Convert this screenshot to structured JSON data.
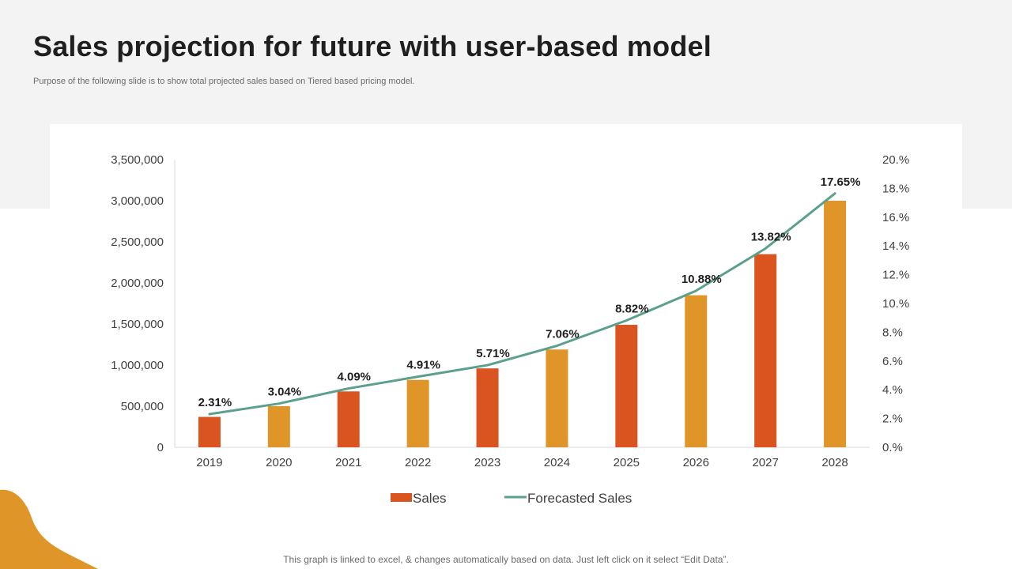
{
  "slide": {
    "title": "Sales projection for future with user-based model",
    "subtitle": "Purpose of the following slide is to show total projected sales based on Tiered based pricing model.",
    "footer": "This graph is linked to excel, & changes automatically based on data. Just left click on it select “Edit Data”."
  },
  "colors": {
    "bar_primary": "#D9541E",
    "bar_secondary": "#E09528",
    "line": "#5BA08F",
    "accent_blob": "#E09528",
    "band": "#F3F3F3"
  },
  "chart_data": {
    "type": "bar",
    "categories": [
      "2019",
      "2020",
      "2021",
      "2022",
      "2023",
      "2024",
      "2025",
      "2026",
      "2027",
      "2028"
    ],
    "series": [
      {
        "name": "Sales",
        "type": "bar",
        "axis": "left",
        "values": [
          370000,
          500000,
          680000,
          820000,
          960000,
          1190000,
          1490000,
          1850000,
          2350000,
          3000000
        ]
      },
      {
        "name": "Forecasted Sales",
        "type": "line",
        "axis": "right",
        "values": [
          2.31,
          3.04,
          4.09,
          4.91,
          5.71,
          7.06,
          8.82,
          10.88,
          13.82,
          17.65
        ],
        "labels": [
          "2.31%",
          "3.04%",
          "4.09%",
          "4.91%",
          "5.71%",
          "7.06%",
          "8.82%",
          "10.88%",
          "13.82%",
          "17.65%"
        ]
      }
    ],
    "ylim": [
      0,
      3500000
    ],
    "y_ticks": [
      0,
      500000,
      1000000,
      1500000,
      2000000,
      2500000,
      3000000,
      3500000
    ],
    "y_tick_labels": [
      "0",
      "500,000",
      "1,000,000",
      "1,500,000",
      "2,000,000",
      "2,500,000",
      "3,000,000",
      "3,500,000"
    ],
    "y2lim": [
      0,
      20
    ],
    "y2_ticks": [
      0,
      2,
      4,
      6,
      8,
      10,
      12,
      14,
      16,
      18,
      20
    ],
    "y2_tick_labels": [
      "0.%",
      "2.%",
      "4.%",
      "6.%",
      "8.%",
      "10.%",
      "12.%",
      "14.%",
      "16.%",
      "18.%",
      "20.%"
    ],
    "legend": [
      "Sales",
      "Forecasted Sales"
    ],
    "legend_position": "bottom",
    "grid": false,
    "title": "",
    "xlabel": "",
    "ylabel": ""
  }
}
